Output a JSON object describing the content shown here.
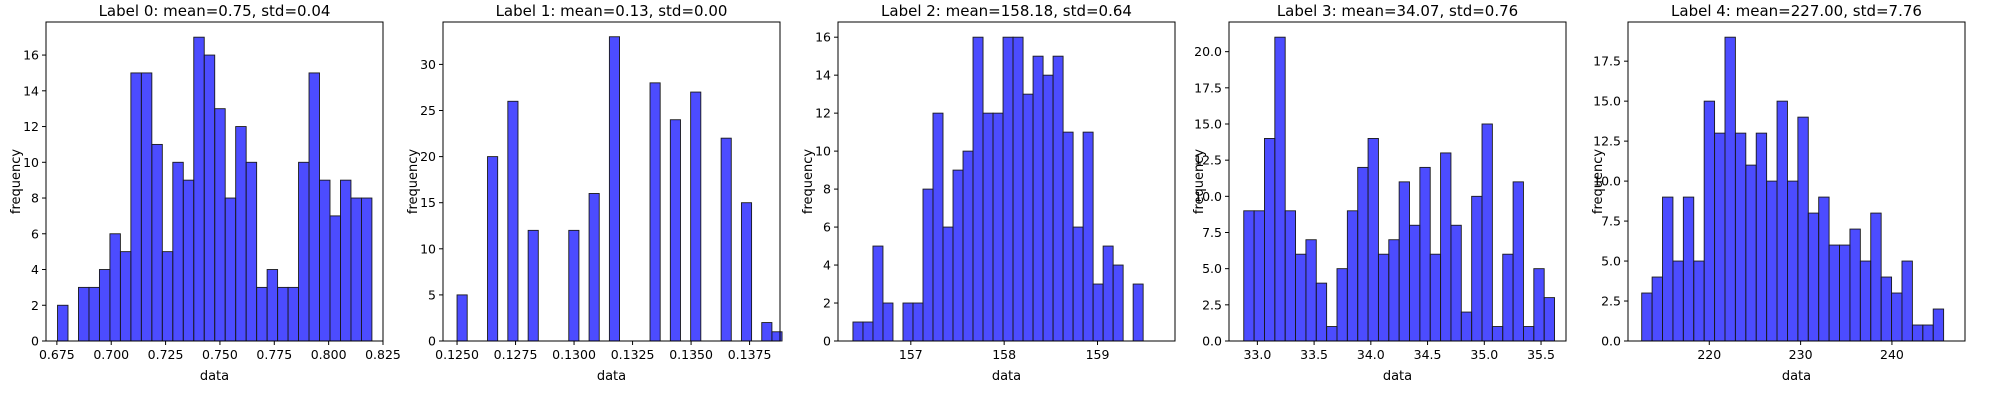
{
  "chart_data": [
    {
      "type": "bar",
      "title": "Label 0: mean=0.75, std=0.04",
      "xlabel": "data",
      "ylabel": "frequency",
      "bar_color": "#0000ff",
      "edge_color": "#1a1a1a",
      "xlim": [
        0.67,
        0.825
      ],
      "ylim": [
        0,
        17.85
      ],
      "xticks": [
        0.675,
        0.7,
        0.725,
        0.75,
        0.775,
        0.8,
        0.825
      ],
      "xtick_labels": [
        "0.675",
        "0.700",
        "0.725",
        "0.750",
        "0.775",
        "0.800",
        "0.825"
      ],
      "yticks": [
        0,
        2,
        4,
        6,
        8,
        10,
        12,
        14,
        16
      ],
      "ytick_labels": [
        "0",
        "2",
        "4",
        "6",
        "8",
        "10",
        "12",
        "14",
        "16"
      ],
      "bin_start": 0.6753,
      "bin_width": 0.00482,
      "values": [
        2,
        0,
        3,
        3,
        4,
        6,
        5,
        15,
        15,
        11,
        5,
        10,
        9,
        17,
        16,
        13,
        8,
        12,
        10,
        3,
        4,
        3,
        3,
        10,
        15,
        9,
        7,
        9,
        8,
        8
      ]
    },
    {
      "type": "bar",
      "title": "Label 1: mean=0.13, std=0.00",
      "xlabel": "data",
      "ylabel": "frequency",
      "bar_color": "#0000ff",
      "edge_color": "#1a1a1a",
      "xlim": [
        0.1244,
        0.1388
      ],
      "ylim": [
        0,
        34.6
      ],
      "xticks": [
        0.125,
        0.1275,
        0.13,
        0.1325,
        0.135,
        0.1375
      ],
      "xtick_labels": [
        "0.1250",
        "0.1275",
        "0.1300",
        "0.1325",
        "0.1350",
        "0.1375"
      ],
      "yticks": [
        0,
        5,
        10,
        15,
        20,
        25,
        30
      ],
      "ytick_labels": [
        "0",
        "5",
        "10",
        "15",
        "20",
        "25",
        "30"
      ],
      "bin_start": 0.125,
      "bin_width": 0.000434,
      "values": [
        5,
        0,
        0,
        20,
        0,
        26,
        0,
        12,
        0,
        0,
        0,
        12,
        0,
        16,
        0,
        33,
        0,
        0,
        0,
        28,
        0,
        24,
        0,
        27,
        0,
        0,
        22,
        0,
        15,
        0,
        2,
        1
      ]
    },
    {
      "type": "bar",
      "title": "Label 2: mean=158.18, std=0.64",
      "xlabel": "data",
      "ylabel": "frequency",
      "bar_color": "#0000ff",
      "edge_color": "#1a1a1a",
      "xlim": [
        156.22,
        159.83
      ],
      "ylim": [
        0,
        16.8
      ],
      "xticks": [
        157,
        158,
        159
      ],
      "xtick_labels": [
        "157",
        "158",
        "159"
      ],
      "yticks": [
        0,
        2,
        4,
        6,
        8,
        10,
        12,
        14,
        16
      ],
      "ytick_labels": [
        "0",
        "2",
        "4",
        "6",
        "8",
        "10",
        "12",
        "14",
        "16"
      ],
      "bin_start": 156.38,
      "bin_width": 0.1072,
      "values": [
        1,
        1,
        5,
        2,
        0,
        2,
        2,
        8,
        12,
        6,
        9,
        10,
        16,
        12,
        12,
        16,
        16,
        13,
        15,
        14,
        15,
        11,
        6,
        11,
        3,
        5,
        4,
        0,
        3,
        0
      ]
    },
    {
      "type": "bar",
      "title": "Label 3: mean=34.07, std=0.76",
      "xlabel": "data",
      "ylabel": "frequency",
      "bar_color": "#0000ff",
      "edge_color": "#1a1a1a",
      "xlim": [
        32.75,
        35.72
      ],
      "ylim": [
        0,
        22.05
      ],
      "xticks": [
        33,
        33.5,
        34,
        34.5,
        35,
        35.5
      ],
      "xtick_labels": [
        "33.0",
        "33.5",
        "34.0",
        "34.5",
        "35.0",
        "35.5"
      ],
      "yticks": [
        0,
        2.5,
        5,
        7.5,
        10,
        12.5,
        15,
        17.5,
        20
      ],
      "ytick_labels": [
        "0.0",
        "2.5",
        "5.0",
        "7.5",
        "10.0",
        "12.5",
        "15.0",
        "17.5",
        "20.0"
      ],
      "bin_start": 32.88,
      "bin_width": 0.0913,
      "values": [
        9,
        9,
        14,
        21,
        9,
        6,
        7,
        4,
        1,
        5,
        9,
        12,
        14,
        6,
        7,
        11,
        8,
        12,
        6,
        13,
        8,
        2,
        10,
        15,
        1,
        6,
        11,
        1,
        5,
        3
      ]
    },
    {
      "type": "bar",
      "title": "Label 4: mean=227.00, std=7.76",
      "xlabel": "data",
      "ylabel": "frequency",
      "bar_color": "#0000ff",
      "edge_color": "#1a1a1a",
      "xlim": [
        211.1,
        248.0
      ],
      "ylim": [
        0,
        19.95
      ],
      "xticks": [
        220,
        230,
        240
      ],
      "xtick_labels": [
        "220",
        "230",
        "240"
      ],
      "yticks": [
        0,
        2.5,
        5,
        7.5,
        10,
        12.5,
        15,
        17.5
      ],
      "ytick_labels": [
        "0.0",
        "2.5",
        "5.0",
        "7.5",
        "10.0",
        "12.5",
        "15.0",
        "17.5"
      ],
      "bin_start": 212.6,
      "bin_width": 1.14,
      "values": [
        3,
        4,
        9,
        5,
        9,
        5,
        15,
        13,
        19,
        13,
        11,
        13,
        10,
        15,
        10,
        14,
        8,
        9,
        6,
        6,
        7,
        5,
        8,
        4,
        3,
        5,
        1,
        1,
        2,
        0
      ]
    }
  ]
}
